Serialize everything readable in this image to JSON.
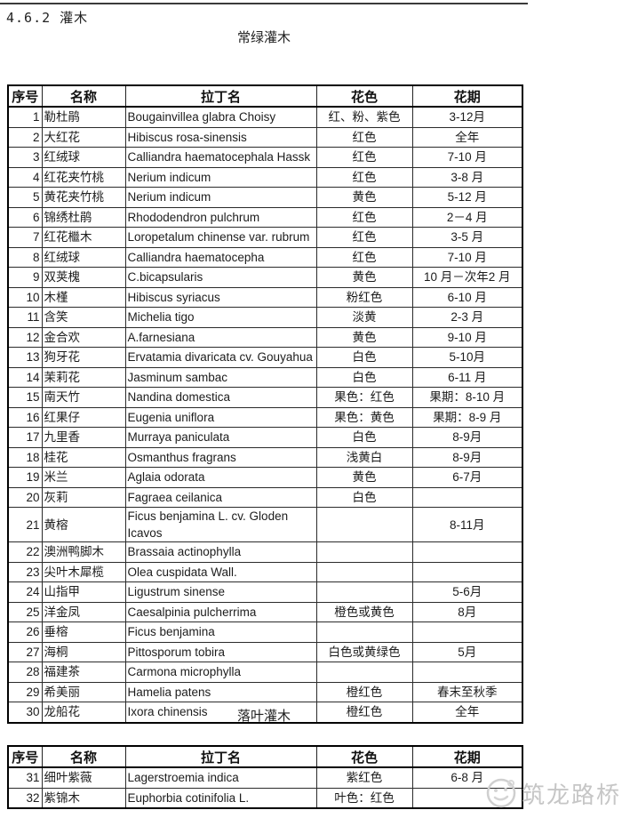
{
  "page": {
    "section_heading": "4.6.2 灌木",
    "table1_title": "常绿灌木",
    "table2_title": "落叶灌木",
    "watermark_text": "筑龙路桥"
  },
  "columns": [
    "序号",
    "名称",
    "拉丁名",
    "花色",
    "花期"
  ],
  "tables": {
    "evergreen": [
      [
        "1",
        "勒杜鹃",
        "Bougainvillea glabra Choisy",
        "红、粉、紫色",
        "3-12月"
      ],
      [
        "2",
        "大红花",
        "Hibiscus rosa-sinensis",
        "红色",
        "全年"
      ],
      [
        "3",
        "红绒球",
        "Calliandra haematocephala Hassk",
        "红色",
        "7-10 月"
      ],
      [
        "4",
        "红花夹竹桃",
        "Nerium indicum",
        "红色",
        "3-8 月"
      ],
      [
        "5",
        "黄花夹竹桃",
        "Nerium indicum",
        "黄色",
        "5-12 月"
      ],
      [
        "6",
        "锦绣杜鹃",
        "Rhododendron pulchrum",
        "红色",
        "2－4 月"
      ],
      [
        "7",
        "红花檵木",
        "Loropetalum chinense var. rubrum",
        "红色",
        "3-5 月"
      ],
      [
        "8",
        "红绒球",
        "Calliandra  haematocepha",
        "红色",
        "7-10 月"
      ],
      [
        "9",
        "双荚槐",
        "C.bicapsularis",
        "黄色",
        "10 月－次年2 月"
      ],
      [
        "10",
        "木槿",
        "Hibiscus syriacus",
        "粉红色",
        "6-10 月"
      ],
      [
        "11",
        "含笑",
        "Michelia tigo",
        "淡黄",
        "2-3 月"
      ],
      [
        "12",
        "金合欢",
        "A.farnesiana",
        "黄色",
        "9-10 月"
      ],
      [
        "13",
        "狗牙花",
        "Ervatamia divaricata cv. Gouyahua",
        "白色",
        "5-10月"
      ],
      [
        "14",
        "茉莉花",
        "Jasminum sambac",
        "白色",
        "6-11 月"
      ],
      [
        "15",
        "南天竹",
        "Nandina domestica",
        "果色：红色",
        "果期：8-10 月"
      ],
      [
        "16",
        "红果仔",
        "Eugenia uniflora",
        "果色：黄色",
        "果期：8-9 月"
      ],
      [
        "17",
        "九里香",
        "Murraya paniculata",
        "白色",
        "8-9月"
      ],
      [
        "18",
        "桂花",
        "Osmanthus fragrans",
        "浅黄白",
        "8-9月"
      ],
      [
        "19",
        "米兰",
        "Aglaia odorata",
        "黄色",
        "6-7月"
      ],
      [
        "20",
        "灰莉",
        "Fagraea ceilanica",
        "白色",
        ""
      ],
      [
        "21",
        "黄榕",
        "Ficus benjamina L. cv. Gloden\nIcavos",
        "",
        "8-11月"
      ],
      [
        "22",
        "澳洲鸭脚木",
        "Brassaia actinophylla",
        "",
        ""
      ],
      [
        "23",
        "尖叶木犀榄",
        "Olea cuspidata Wall.",
        "",
        ""
      ],
      [
        "24",
        "山指甲",
        "Ligustrum sinense",
        "",
        "5-6月"
      ],
      [
        "25",
        "洋金凤",
        "Caesalpinia pulcherrima",
        "橙色或黄色",
        "8月"
      ],
      [
        "26",
        "垂榕",
        "Ficus benjamina",
        "",
        ""
      ],
      [
        "27",
        "海桐",
        "Pittosporum tobira",
        "白色或黄绿色",
        "5月"
      ],
      [
        "28",
        "福建茶",
        "Carmona microphylla",
        "",
        ""
      ],
      [
        "29",
        "希美丽",
        "Hamelia patens",
        "橙红色",
        "春末至秋季"
      ],
      [
        "30",
        "龙船花",
        "Ixora chinensis",
        "橙红色",
        "全年"
      ]
    ],
    "deciduous": [
      [
        "31",
        "细叶紫薇",
        "Lagerstroemia indica",
        "紫红色",
        "6-8 月"
      ],
      [
        "32",
        "紫锦木",
        "Euphorbia  cotinifolia L.",
        "叶色：红色",
        ""
      ]
    ]
  },
  "colors": {
    "text": "#1a1a1a",
    "rule": "#3a3a3a",
    "watermark": "#c6c6c6"
  }
}
